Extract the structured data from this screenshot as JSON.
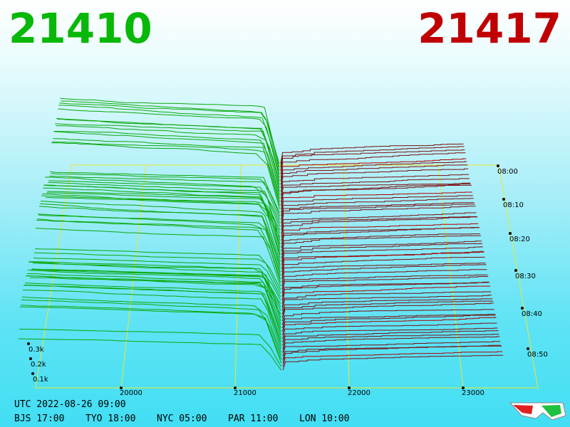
{
  "header": {
    "bid_price": "21410",
    "ask_price": "21417"
  },
  "price_axis": [
    "20000",
    "21000",
    "22000",
    "23000"
  ],
  "depth_axis": [
    "0.3k",
    "0.2k",
    "0.1k"
  ],
  "time_axis": [
    "08:00",
    "08:10",
    "08:20",
    "08:30",
    "08:40",
    "08:50"
  ],
  "footer": {
    "utc": "UTC 2022-08-26 09:00",
    "clocks": [
      "BJS 17:00",
      "TYO 18:00",
      "NYC 05:00",
      "PAR 11:00",
      "LON 10:00"
    ]
  }
}
